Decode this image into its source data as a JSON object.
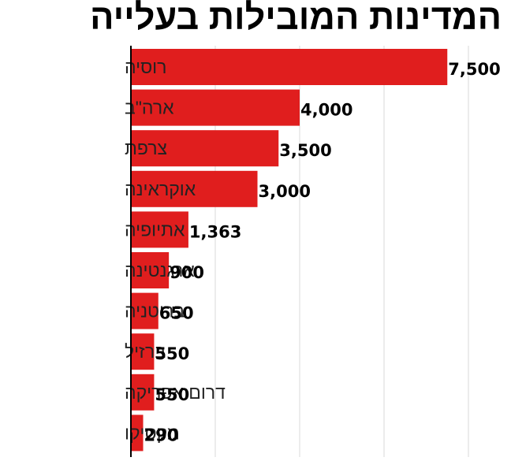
{
  "chart_data": {
    "type": "bar",
    "orientation": "horizontal",
    "title": "המדינות המובילות בעלייה",
    "categories": [
      "רוסיה",
      "ארה\"ב",
      "צרפת",
      "אוקראינה",
      "אתיופיה",
      "ארגנטינה",
      "בריטניה",
      "ברזיל",
      "דרום אפריקה",
      "מקסיקו"
    ],
    "values": [
      7500,
      4000,
      3500,
      3000,
      1363,
      900,
      650,
      550,
      550,
      290
    ],
    "value_labels": [
      "7,500",
      "4,000",
      "3,500",
      "3,000",
      "1,363",
      "900",
      "650",
      "550",
      "550",
      "290"
    ],
    "xlim": [
      0,
      8000
    ],
    "grid": true,
    "legend": "none",
    "bar_color": "#e01e1e"
  }
}
